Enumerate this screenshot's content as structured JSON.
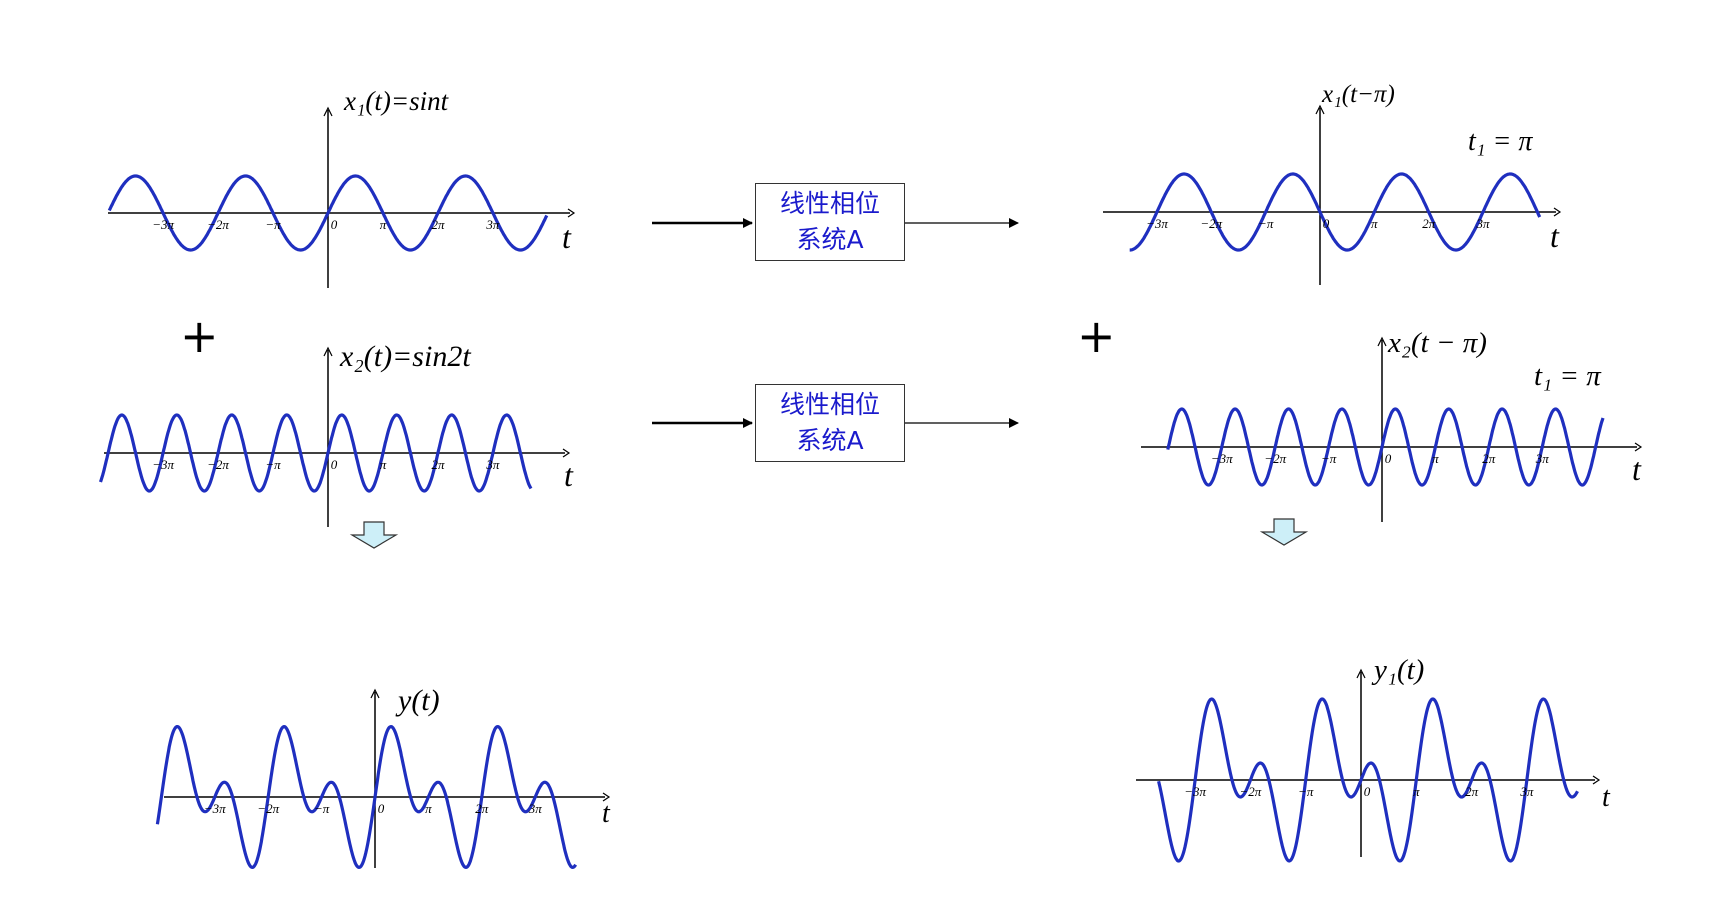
{
  "colors": {
    "wave": "#1f2fbf",
    "axis": "#000000",
    "arrow_fill": "#cdeff8"
  },
  "graphs": [
    {
      "id": "x1",
      "label": "x₁(t)=sint",
      "axis_var": "t",
      "note": "",
      "ticks": [
        "−3π",
        "−2π",
        "−π",
        "0",
        "π",
        "2π",
        "3π"
      ]
    },
    {
      "id": "x2",
      "label": "x₂(t)=sin2t",
      "axis_var": "t",
      "note": "",
      "ticks": [
        "−3π",
        "−2π",
        "−π",
        "0",
        "π",
        "2π",
        "3π"
      ]
    },
    {
      "id": "y",
      "label": "y(t)",
      "axis_var": "t",
      "note": "",
      "ticks": [
        "−3π",
        "−2π",
        "−π",
        "0",
        "π",
        "2π",
        "3π"
      ]
    },
    {
      "id": "x1s",
      "label": "x₁(t−π)",
      "axis_var": "t",
      "note": "t₁ = π",
      "ticks": [
        "−3π",
        "−2π",
        "−π",
        "0",
        "π",
        "2π",
        "3π"
      ]
    },
    {
      "id": "x2s",
      "label": "x₂(t − π)",
      "axis_var": "t",
      "note": "t₁ = π",
      "ticks": [
        "−3π",
        "−2π",
        "−π",
        "0",
        "π",
        "2π",
        "3π"
      ]
    },
    {
      "id": "y1",
      "label": "y₁(t)",
      "axis_var": "t",
      "note": "",
      "ticks": [
        "−3π",
        "−2π",
        "−π",
        "0",
        "π",
        "2π",
        "3π"
      ]
    }
  ],
  "systems": [
    {
      "line1": "线性相位",
      "line2": "系统A"
    },
    {
      "line1": "线性相位",
      "line2": "系统A"
    }
  ],
  "plus_sign": "+"
}
